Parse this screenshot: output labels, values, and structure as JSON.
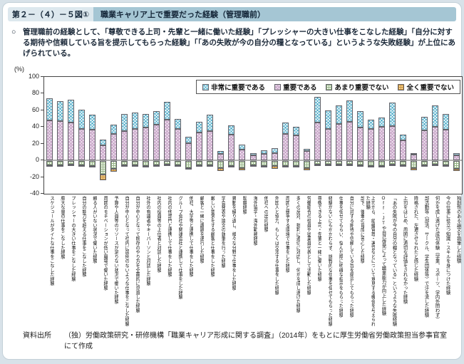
{
  "page": {
    "figure_label": "第２－（４）－５図①",
    "title": "職業キャリア上で重要だった経験（管理職前）",
    "bullet": "○",
    "summary": "管理職前の経験として、「尊敬できる上司・先輩と一緒に働いた経験」「プレッシャーの大きい仕事をこなした経験」「自分に対する期待や信頼している旨を提示してもらった経験」「「あの失敗が今の自分の糧となっている」というような失敗経験」が上位にあげられている。",
    "unit_label": "(%)",
    "source_label": "資料出所",
    "source_text": "（独）労働政策研究・研修機構「職業キャリア形成に関する調査」（2014年）をもとに厚生労働省労働政策担当参事官室にて作成"
  },
  "chart_data": {
    "type": "bar",
    "stacked": true,
    "orientation": "vertical",
    "ylim": [
      -40,
      100
    ],
    "yticks": [
      100,
      80,
      60,
      40,
      20,
      0,
      -20,
      -40
    ],
    "grid": false,
    "legend_position": "top-right-inside",
    "legend": [
      {
        "name": "非常に重要である",
        "color": "#3fa5c5",
        "pattern": "diagonal-crosshatch"
      },
      {
        "name": "重要である",
        "color": "#f2e8f2",
        "pattern": "diagonal-crosshatch-pink"
      },
      {
        "name": "あまり重要でない",
        "color": "#f3f7f0",
        "pattern": "grid-green"
      },
      {
        "name": "全く重要でない",
        "color": "#f6d9a2",
        "pattern": "grid-orange"
      }
    ],
    "categories": [
      "スケジュールがタイトな仕事をこなした経験",
      "膨大な量の仕事をこなした経験",
      "プレッシャーの大きい仕事をこなした経験",
      "自分の能力を超える仕事をこなした経験",
      "頼る人がいない状況で働いた経験",
      "周囲のモチベーションが低い職場で働いた経験",
      "予算や人員等のリソースが足りない状況で働いた経験",
      "自分が中心となって社内に前例のないような仕事をこなした経験",
      "自分が中心となって既存のやり方を全面的に見直した経験",
      "社外の有識者やキーパーソンと対話した経験",
      "社内の役員等の上位者と対話した経験",
      "社内の他部門と連携して仕事をした経験",
      "グループ会社や関連会社と連携して仕事をした経験",
      "他社、大学等と連携して仕事をした経験",
      "顧客と一緒に課題を遂行した経験",
      "厳しい要求をする顧客と仕事をした経験",
      "学会発表や論文の執筆を行った経験",
      "異動を繰り返し、様々な分野で仕事をした経験",
      "転職経験",
      "海外留学・海外勤務経験",
      "他社への出向経験",
      "外国人と協力、もしくは交渉する仕事をした経験",
      "周囲と競争する環境で仕事をした経験",
      "多くの反対、批判に適切に対応し、何かを成し遂げた経験",
      "労働組合の役員や従業員代表として活動した経験",
      "尊敬できる上司・先輩と一緒に働いた経験",
      "経験がないにもかかわらず、挑戦的な仕事を任せてもらった経験",
      "仕事を任せてもらい、悩んだ際に明確な指示をもらった経験",
      "自分に対する期待や信頼している旨を提示してもらった経験",
      "部下、後輩の育成に苦心した経験",
      "上司から、組織管理・運営などについて意見する機会を与えられた経験",
      "Off-JTや自己啓発によって職業能力が向上した経験",
      "「あの失敗が今の自分の糧となっている」というような失敗経験",
      "上司をはじめ、周囲に適切な評価をされなかった経験",
      "降格された、左遷させられたと感じた経験",
      "部活動等（部活、サークル、学生団体等）で汗を流した経験",
      "何かを成し遂げた成功体験（学業、スポーツ、学内外問わず）",
      "今の仕事に役立つ知識・スキルを身につけた経験",
      "独創性のある論文を執筆した経験"
    ],
    "series": [
      {
        "name": "非常に重要である",
        "values": [
          26,
          24,
          28,
          23,
          18,
          7,
          11,
          21,
          19,
          17,
          16,
          21,
          12,
          7,
          13,
          20,
          3,
          11,
          6,
          3,
          4,
          6,
          13,
          10,
          3,
          31,
          22,
          22,
          26,
          20,
          11,
          11,
          28,
          7,
          2,
          16,
          26,
          19,
          3
        ]
      },
      {
        "name": "重要である",
        "values": [
          48,
          47,
          45,
          38,
          37,
          18,
          32,
          35,
          38,
          39,
          43,
          49,
          38,
          21,
          33,
          35,
          8,
          31,
          13,
          6,
          8,
          9,
          32,
          30,
          11,
          45,
          38,
          44,
          46,
          39,
          38,
          40,
          41,
          24,
          7,
          36,
          40,
          37,
          6
        ]
      },
      {
        "name": "あまり重要でない",
        "values": [
          -5,
          -5,
          -4,
          -5,
          -6,
          -16,
          -9,
          -5,
          -5,
          -6,
          -5,
          -4,
          -5,
          -8,
          -5,
          -5,
          -8,
          -6,
          -8,
          -5,
          -6,
          -6,
          -6,
          -6,
          -8,
          -4,
          -4,
          -4,
          -4,
          -5,
          -6,
          -6,
          -4,
          -5,
          -8,
          -5,
          -4,
          -5,
          -9
        ]
      },
      {
        "name": "全く重要でない",
        "values": [
          -2,
          -2,
          -1,
          -1,
          -2,
          -7,
          -4,
          -1,
          -1,
          -1,
          -2,
          -1,
          -2,
          -2,
          -1,
          -2,
          -4,
          -2,
          -3,
          -2,
          -2,
          -3,
          -2,
          -2,
          -3,
          -1,
          -1,
          -1,
          -1,
          -2,
          -2,
          -2,
          -1,
          -2,
          -3,
          -2,
          -2,
          -1,
          -3
        ]
      }
    ]
  }
}
